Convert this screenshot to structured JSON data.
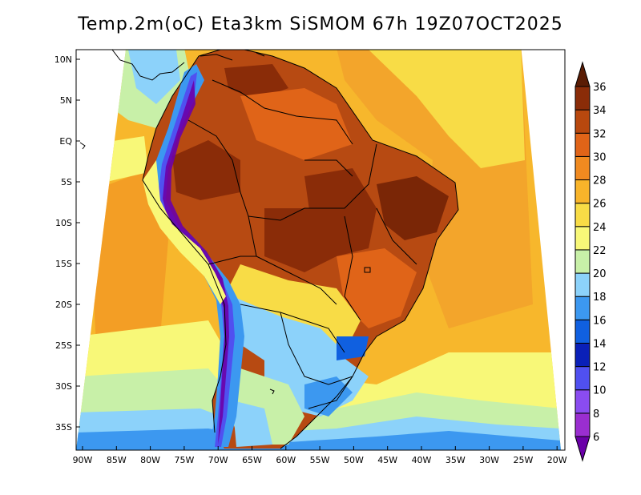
{
  "title": "Temp.2m(oC) Eta3km SiSMOM 67h 19Z07OCT2025",
  "map": {
    "lat_ticks": [
      "10N",
      "5N",
      "EQ",
      "5S",
      "10S",
      "15S",
      "20S",
      "25S",
      "30S",
      "35S"
    ],
    "lon_ticks": [
      "90W",
      "85W",
      "80W",
      "75W",
      "70W",
      "65W",
      "60W",
      "55W",
      "50W",
      "45W",
      "40W",
      "35W",
      "30W",
      "25W",
      "20W"
    ]
  },
  "colorbar": {
    "levels": [
      6,
      8,
      10,
      12,
      14,
      16,
      18,
      20,
      22,
      24,
      26,
      28,
      30,
      32,
      34,
      36
    ],
    "colors": [
      "#6a00a8",
      "#9a2ed0",
      "#8a4cf0",
      "#5050f0",
      "#0a20b8",
      "#1060e0",
      "#3c98f0",
      "#8cd2fa",
      "#c8f0a8",
      "#f8f878",
      "#f8dc46",
      "#f8b42a",
      "#f08a20",
      "#e06418",
      "#b8480e",
      "#8a2c08",
      "#5a1c04"
    ]
  },
  "colors": {
    "ocean": "#f7b72c",
    "ocean_warm": "#f3a52b",
    "land_hot": "#b74a12",
    "border": "#000000"
  }
}
